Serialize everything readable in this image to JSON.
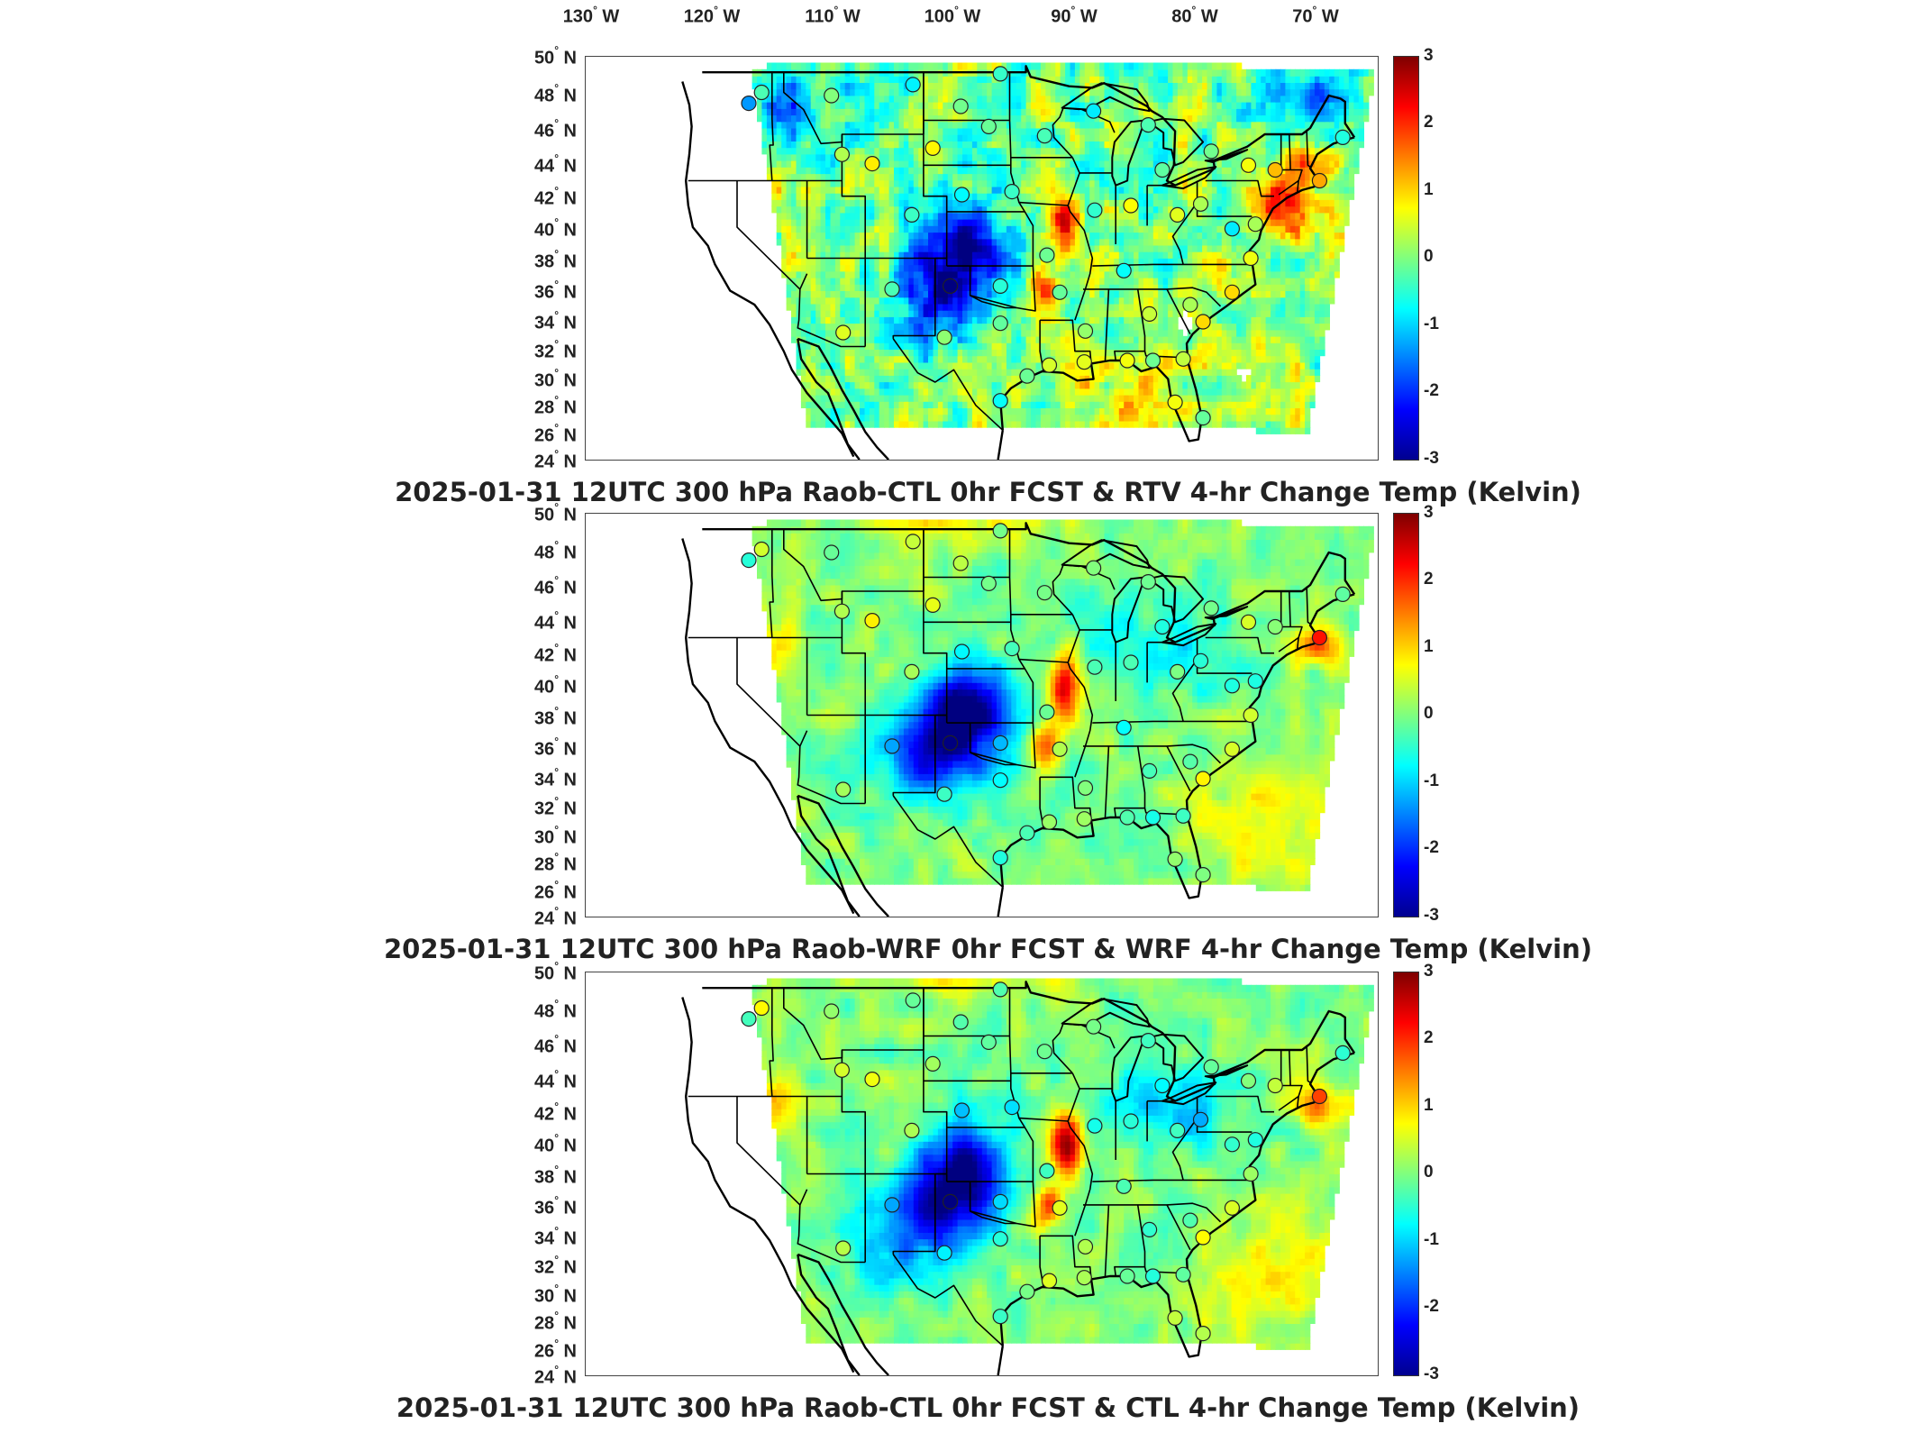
{
  "figure": {
    "top_longitude_labels": [
      {
        "value": "130",
        "unit": " W"
      },
      {
        "value": "120",
        "unit": " W"
      },
      {
        "value": "110",
        "unit": " W"
      },
      {
        "value": "100",
        "unit": " W"
      },
      {
        "value": "90",
        "unit": " W"
      },
      {
        "value": "80",
        "unit": " W"
      },
      {
        "value": "70",
        "unit": " W"
      }
    ],
    "latitude_labels": [
      {
        "value": "50",
        "unit": " N"
      },
      {
        "value": "48",
        "unit": " N"
      },
      {
        "value": "46",
        "unit": " N"
      },
      {
        "value": "44",
        "unit": " N"
      },
      {
        "value": "42",
        "unit": " N"
      },
      {
        "value": "40",
        "unit": " N"
      },
      {
        "value": "38",
        "unit": " N"
      },
      {
        "value": "36",
        "unit": " N"
      },
      {
        "value": "34",
        "unit": " N"
      },
      {
        "value": "32",
        "unit": " N"
      },
      {
        "value": "30",
        "unit": " N"
      },
      {
        "value": "28",
        "unit": " N"
      },
      {
        "value": "26",
        "unit": " N"
      },
      {
        "value": "24",
        "unit": " N"
      }
    ],
    "colorbar": {
      "ticks": [
        "3",
        "2",
        "1",
        "0",
        "-1",
        "-2",
        "-3"
      ],
      "range": [
        -3,
        3
      ],
      "colormap": [
        "#00008f",
        "#0000ff",
        "#007fff",
        "#00ffff",
        "#7fff7f",
        "#ffff00",
        "#ff7f00",
        "#ff0000",
        "#7f0000"
      ]
    },
    "panels": [
      {
        "title": "2025-01-31 12UTC 300 hPa Raob-CTL 0hr FCST & RTV 4-hr Change Temp (Kelvin)"
      },
      {
        "title": "2025-01-31 12UTC 300 hPa Raob-WRF 0hr FCST & WRF 4-hr Change Temp (Kelvin)"
      },
      {
        "title": "2025-01-31 12UTC 300 hPa Raob-CTL 0hr FCST & CTL 4-hr Change Temp (Kelvin)"
      }
    ],
    "map_extent": {
      "lon_min": -133,
      "lon_max": -65,
      "lat_min": 24,
      "lat_max": 50
    }
  }
}
